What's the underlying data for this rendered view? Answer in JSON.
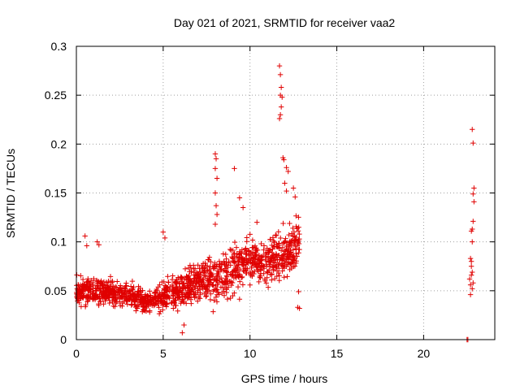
{
  "chart_data": {
    "type": "scatter",
    "title": "Day 021 of 2021, SRMTID for receiver vaa2",
    "xlabel": "GPS time / hours",
    "ylabel": "SRMTID / TECUs",
    "xlim": [
      0,
      24.1
    ],
    "ylim": [
      0,
      0.3
    ],
    "grid": true,
    "marker": "+",
    "x_ticks": [
      0,
      5,
      10,
      15,
      20
    ],
    "y_ticks": [
      0,
      0.05,
      0.1,
      0.15,
      0.2,
      0.25,
      0.3
    ],
    "x_tick_labels": [
      "0",
      "5",
      "10",
      "15",
      "20"
    ],
    "y_tick_labels": [
      "0",
      "0.05",
      "0.1",
      "0.15",
      "0.2",
      "0.25",
      "0.3"
    ],
    "series": [
      {
        "name": "vaa2",
        "color": "#e00000",
        "trend": {
          "x": [
            0,
            1,
            2,
            3,
            4,
            5,
            6,
            7,
            8,
            9,
            10,
            11,
            12,
            12.8
          ],
          "y": [
            0.048,
            0.05,
            0.048,
            0.045,
            0.038,
            0.045,
            0.05,
            0.058,
            0.062,
            0.072,
            0.085,
            0.078,
            0.09,
            0.098
          ]
        },
        "spread": [
          0.012,
          0.012,
          0.012,
          0.011,
          0.011,
          0.014,
          0.016,
          0.018,
          0.022,
          0.024,
          0.02,
          0.02,
          0.025,
          0.022
        ],
        "x_start": 0,
        "x_end": 12.85,
        "points_count": 1400,
        "outliers": [
          {
            "x": 0.5,
            "y": 0.106
          },
          {
            "x": 0.6,
            "y": 0.096
          },
          {
            "x": 1.2,
            "y": 0.1
          },
          {
            "x": 1.3,
            "y": 0.097
          },
          {
            "x": 5.0,
            "y": 0.11
          },
          {
            "x": 5.1,
            "y": 0.104
          },
          {
            "x": 6.1,
            "y": 0.007
          },
          {
            "x": 6.2,
            "y": 0.015
          },
          {
            "x": 8.0,
            "y": 0.19
          },
          {
            "x": 8.05,
            "y": 0.185
          },
          {
            "x": 8.0,
            "y": 0.175
          },
          {
            "x": 8.1,
            "y": 0.165
          },
          {
            "x": 8.0,
            "y": 0.15
          },
          {
            "x": 8.05,
            "y": 0.137
          },
          {
            "x": 8.1,
            "y": 0.128
          },
          {
            "x": 8.0,
            "y": 0.118
          },
          {
            "x": 9.1,
            "y": 0.175
          },
          {
            "x": 9.4,
            "y": 0.145
          },
          {
            "x": 9.6,
            "y": 0.135
          },
          {
            "x": 10.4,
            "y": 0.12
          },
          {
            "x": 11.7,
            "y": 0.28
          },
          {
            "x": 11.75,
            "y": 0.271
          },
          {
            "x": 11.8,
            "y": 0.258
          },
          {
            "x": 11.75,
            "y": 0.25
          },
          {
            "x": 11.85,
            "y": 0.248
          },
          {
            "x": 11.8,
            "y": 0.238
          },
          {
            "x": 11.75,
            "y": 0.23
          },
          {
            "x": 11.7,
            "y": 0.226
          },
          {
            "x": 11.9,
            "y": 0.186
          },
          {
            "x": 11.95,
            "y": 0.184
          },
          {
            "x": 12.1,
            "y": 0.176
          },
          {
            "x": 12.2,
            "y": 0.172
          },
          {
            "x": 12.0,
            "y": 0.16
          },
          {
            "x": 12.1,
            "y": 0.152
          },
          {
            "x": 12.5,
            "y": 0.155
          },
          {
            "x": 12.6,
            "y": 0.146
          },
          {
            "x": 12.8,
            "y": 0.049
          },
          {
            "x": 12.85,
            "y": 0.032
          },
          {
            "x": 12.75,
            "y": 0.033
          }
        ],
        "late_points": [
          {
            "x": 22.5,
            "y": 0.0
          },
          {
            "x": 22.55,
            "y": 0.0
          },
          {
            "x": 22.65,
            "y": 0.062
          },
          {
            "x": 22.7,
            "y": 0.056
          },
          {
            "x": 22.75,
            "y": 0.075
          },
          {
            "x": 22.7,
            "y": 0.083
          },
          {
            "x": 22.75,
            "y": 0.08
          },
          {
            "x": 22.8,
            "y": 0.1
          },
          {
            "x": 22.75,
            "y": 0.111
          },
          {
            "x": 22.8,
            "y": 0.113
          },
          {
            "x": 22.85,
            "y": 0.121
          },
          {
            "x": 22.7,
            "y": 0.046
          },
          {
            "x": 22.8,
            "y": 0.052
          },
          {
            "x": 22.85,
            "y": 0.058
          },
          {
            "x": 22.75,
            "y": 0.066
          },
          {
            "x": 22.8,
            "y": 0.069
          },
          {
            "x": 22.9,
            "y": 0.141
          },
          {
            "x": 22.85,
            "y": 0.149
          },
          {
            "x": 22.9,
            "y": 0.155
          },
          {
            "x": 22.85,
            "y": 0.201
          },
          {
            "x": 22.8,
            "y": 0.215
          }
        ]
      }
    ]
  }
}
